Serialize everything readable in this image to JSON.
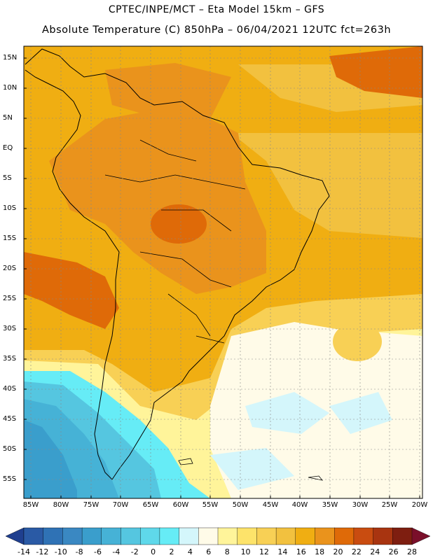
{
  "header": {
    "title_line1": "CPTEC/INPE/MCT –  Eta Model 15km – GFS",
    "title_line2": "Absolute Temperature (C) 850hPa – 06/04/2021 12UTC fct=263h"
  },
  "map": {
    "lat_labels": [
      "15N",
      "10N",
      "5N",
      "EQ",
      "5S",
      "10S",
      "15S",
      "20S",
      "25S",
      "30S",
      "35S",
      "40S",
      "45S",
      "50S",
      "55S"
    ],
    "lon_labels": [
      "85W",
      "80W",
      "75W",
      "70W",
      "65W",
      "60W",
      "55W",
      "50W",
      "45W",
      "40W",
      "35W",
      "30W",
      "25W",
      "20W"
    ]
  },
  "colorbar": {
    "labels": [
      "-14",
      "-12",
      "-10",
      "-8",
      "-6",
      "-4",
      "-2",
      "0",
      "2",
      "4",
      "6",
      "8",
      "10",
      "12",
      "14",
      "16",
      "18",
      "20",
      "22",
      "24",
      "26",
      "28"
    ],
    "colors": [
      "#1f3f8f",
      "#2a5aa5",
      "#2f72b5",
      "#3a88c2",
      "#3a9ecc",
      "#46b2d6",
      "#55c6e0",
      "#5fd8ea",
      "#66ecf6",
      "#d4f6fb",
      "#fffbe8",
      "#fff49a",
      "#fde36a",
      "#f8d055",
      "#f2c13f",
      "#f0ae12",
      "#ea931c",
      "#df6a08",
      "#c94c10",
      "#a83410",
      "#7e1e10",
      "#7a0f2a"
    ]
  }
}
